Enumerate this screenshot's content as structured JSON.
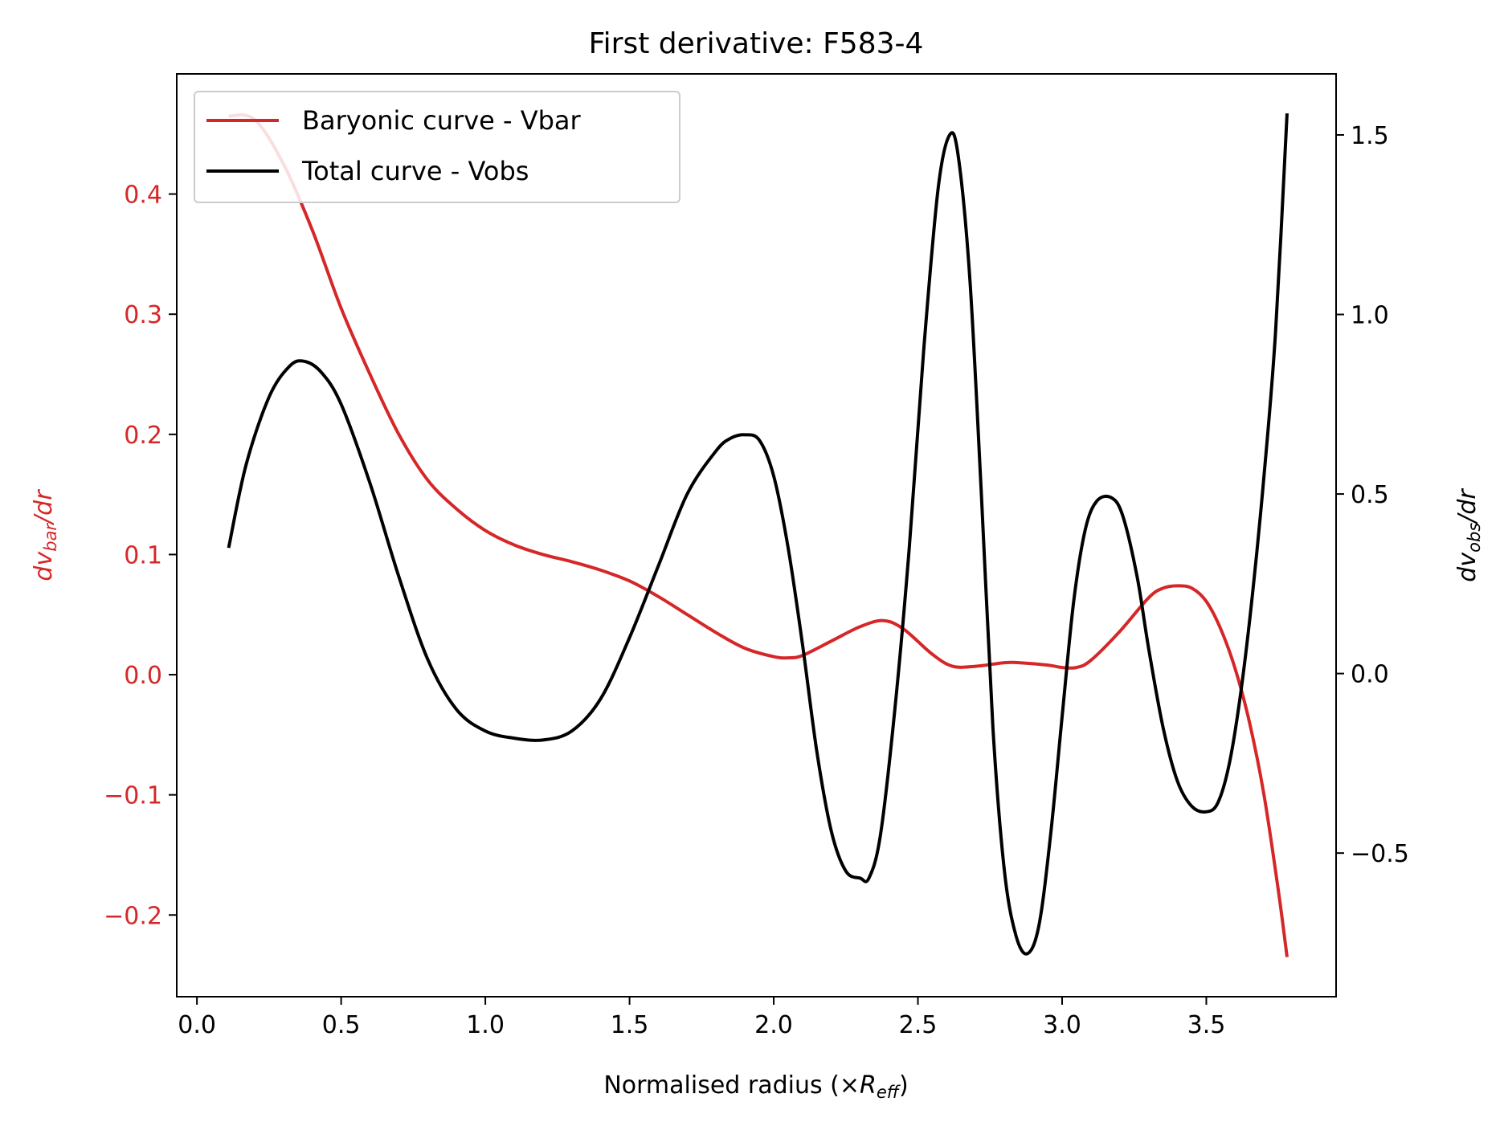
{
  "chart_data": {
    "type": "line",
    "title": "First derivative: F583-4",
    "xlabel": "Normalised radius (×R_eff)",
    "xlabel_parts": {
      "prefix": "Normalised radius (×",
      "var": "R",
      "sub": "eff",
      "suffix": ")"
    },
    "ylabel_left": "dv_bar/dr",
    "ylabel_left_parts": {
      "pre": "dv",
      "sub": "bar",
      "post": "/dr"
    },
    "ylabel_right": "dv_obs/dr",
    "ylabel_right_parts": {
      "pre": "dv",
      "sub": "obs",
      "post": "/dr"
    },
    "xlim": [
      -0.07,
      3.95
    ],
    "ylim_left": [
      -0.268,
      0.5
    ],
    "ylim_right": [
      -0.9,
      1.67
    ],
    "xticks": [
      0.0,
      0.5,
      1.0,
      1.5,
      2.0,
      2.5,
      3.0,
      3.5
    ],
    "xtick_labels": [
      "0.0",
      "0.5",
      "1.0",
      "1.5",
      "2.0",
      "2.5",
      "3.0",
      "3.5"
    ],
    "yticks_left": [
      -0.2,
      -0.1,
      0.0,
      0.1,
      0.2,
      0.3,
      0.4
    ],
    "ytick_labels_left": [
      "−0.2",
      "−0.1",
      "0.0",
      "0.1",
      "0.2",
      "0.3",
      "0.4"
    ],
    "yticks_right": [
      -0.5,
      0.0,
      0.5,
      1.0,
      1.5
    ],
    "ytick_labels_right": [
      "−0.5",
      "0.0",
      "0.5",
      "1.0",
      "1.5"
    ],
    "grid": false,
    "legend_position": "upper-left",
    "colors": {
      "vbar": "#d62728",
      "vobs": "#000000",
      "left_axis": "#d62728",
      "right_axis": "#000000"
    },
    "series": [
      {
        "name": "Baryonic curve - Vbar",
        "axis": "left",
        "color": "#d62728",
        "points": [
          [
            0.11,
            0.465
          ],
          [
            0.2,
            0.462
          ],
          [
            0.3,
            0.425
          ],
          [
            0.4,
            0.37
          ],
          [
            0.5,
            0.305
          ],
          [
            0.6,
            0.25
          ],
          [
            0.7,
            0.2
          ],
          [
            0.8,
            0.162
          ],
          [
            0.9,
            0.138
          ],
          [
            1.0,
            0.12
          ],
          [
            1.1,
            0.108
          ],
          [
            1.2,
            0.1
          ],
          [
            1.3,
            0.094
          ],
          [
            1.4,
            0.087
          ],
          [
            1.5,
            0.078
          ],
          [
            1.6,
            0.065
          ],
          [
            1.7,
            0.05
          ],
          [
            1.8,
            0.035
          ],
          [
            1.9,
            0.022
          ],
          [
            2.0,
            0.015
          ],
          [
            2.05,
            0.014
          ],
          [
            2.1,
            0.016
          ],
          [
            2.2,
            0.028
          ],
          [
            2.3,
            0.04
          ],
          [
            2.38,
            0.045
          ],
          [
            2.45,
            0.038
          ],
          [
            2.55,
            0.017
          ],
          [
            2.62,
            0.007
          ],
          [
            2.7,
            0.007
          ],
          [
            2.8,
            0.01
          ],
          [
            2.85,
            0.01
          ],
          [
            2.95,
            0.008
          ],
          [
            3.0,
            0.006
          ],
          [
            3.05,
            0.006
          ],
          [
            3.1,
            0.012
          ],
          [
            3.2,
            0.036
          ],
          [
            3.3,
            0.064
          ],
          [
            3.35,
            0.072
          ],
          [
            3.4,
            0.074
          ],
          [
            3.45,
            0.072
          ],
          [
            3.5,
            0.061
          ],
          [
            3.55,
            0.038
          ],
          [
            3.6,
            0.005
          ],
          [
            3.65,
            -0.04
          ],
          [
            3.7,
            -0.1
          ],
          [
            3.75,
            -0.18
          ],
          [
            3.78,
            -0.235
          ]
        ]
      },
      {
        "name": "Total curve - Vobs",
        "axis": "right",
        "color": "#000000",
        "points": [
          [
            0.11,
            0.35
          ],
          [
            0.17,
            0.58
          ],
          [
            0.25,
            0.77
          ],
          [
            0.32,
            0.855
          ],
          [
            0.37,
            0.87
          ],
          [
            0.43,
            0.84
          ],
          [
            0.5,
            0.75
          ],
          [
            0.6,
            0.53
          ],
          [
            0.7,
            0.27
          ],
          [
            0.8,
            0.04
          ],
          [
            0.9,
            -0.1
          ],
          [
            1.0,
            -0.16
          ],
          [
            1.1,
            -0.18
          ],
          [
            1.2,
            -0.185
          ],
          [
            1.3,
            -0.16
          ],
          [
            1.4,
            -0.07
          ],
          [
            1.5,
            0.1
          ],
          [
            1.6,
            0.3
          ],
          [
            1.7,
            0.5
          ],
          [
            1.8,
            0.62
          ],
          [
            1.85,
            0.655
          ],
          [
            1.9,
            0.665
          ],
          [
            1.95,
            0.65
          ],
          [
            2.0,
            0.55
          ],
          [
            2.05,
            0.35
          ],
          [
            2.1,
            0.08
          ],
          [
            2.15,
            -0.22
          ],
          [
            2.2,
            -0.44
          ],
          [
            2.25,
            -0.55
          ],
          [
            2.3,
            -0.57
          ],
          [
            2.33,
            -0.57
          ],
          [
            2.37,
            -0.45
          ],
          [
            2.42,
            -0.1
          ],
          [
            2.47,
            0.35
          ],
          [
            2.52,
            0.9
          ],
          [
            2.57,
            1.35
          ],
          [
            2.61,
            1.5
          ],
          [
            2.64,
            1.44
          ],
          [
            2.68,
            1.1
          ],
          [
            2.72,
            0.5
          ],
          [
            2.76,
            -0.15
          ],
          [
            2.8,
            -0.55
          ],
          [
            2.84,
            -0.73
          ],
          [
            2.88,
            -0.78
          ],
          [
            2.92,
            -0.7
          ],
          [
            2.96,
            -0.45
          ],
          [
            3.0,
            -0.12
          ],
          [
            3.04,
            0.2
          ],
          [
            3.08,
            0.4
          ],
          [
            3.12,
            0.48
          ],
          [
            3.17,
            0.49
          ],
          [
            3.21,
            0.44
          ],
          [
            3.26,
            0.27
          ],
          [
            3.3,
            0.07
          ],
          [
            3.35,
            -0.15
          ],
          [
            3.4,
            -0.3
          ],
          [
            3.45,
            -0.37
          ],
          [
            3.5,
            -0.385
          ],
          [
            3.54,
            -0.36
          ],
          [
            3.58,
            -0.25
          ],
          [
            3.62,
            -0.05
          ],
          [
            3.66,
            0.22
          ],
          [
            3.7,
            0.55
          ],
          [
            3.74,
            0.95
          ],
          [
            3.78,
            1.56
          ]
        ]
      }
    ]
  }
}
